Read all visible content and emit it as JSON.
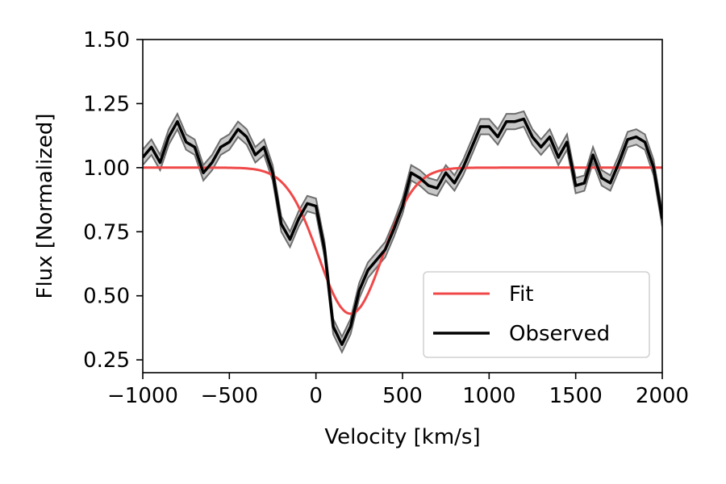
{
  "chart_data": {
    "type": "line",
    "xlabel": "Velocity [km/s]",
    "ylabel": "Flux [Normalized]",
    "xlim": [
      -1000,
      2000
    ],
    "ylim": [
      0.2,
      1.5
    ],
    "xticks": [
      -1000,
      -500,
      0,
      500,
      1000,
      1500,
      2000
    ],
    "xtick_labels": [
      "−1000",
      "−500",
      "0",
      "500",
      "1000",
      "1500",
      "2000"
    ],
    "yticks": [
      0.25,
      0.5,
      0.75,
      1.0,
      1.25,
      1.5
    ],
    "ytick_labels": [
      "0.25",
      "0.50",
      "0.75",
      "1.00",
      "1.25",
      "1.50"
    ],
    "legend_position": "lower-right",
    "colors": {
      "fit": "#f04848",
      "observed": "#000000",
      "band_fill": "#c8c8c8",
      "band_edge": "#6e6e6e"
    },
    "series": [
      {
        "name": "Fit",
        "model": "gaussian",
        "baseline": 1.0,
        "center": 200,
        "depth": 0.57,
        "sigma": 185
      },
      {
        "name": "Observed",
        "uncertainty": 0.03,
        "x": [
          -1000,
          -950,
          -900,
          -850,
          -800,
          -750,
          -700,
          -650,
          -600,
          -550,
          -500,
          -450,
          -400,
          -350,
          -300,
          -250,
          -200,
          -150,
          -100,
          -50,
          0,
          50,
          100,
          150,
          200,
          250,
          300,
          350,
          400,
          450,
          500,
          550,
          600,
          650,
          700,
          750,
          800,
          850,
          900,
          950,
          1000,
          1050,
          1100,
          1150,
          1200,
          1250,
          1300,
          1350,
          1400,
          1450,
          1500,
          1550,
          1600,
          1650,
          1700,
          1750,
          1800,
          1850,
          1900,
          1950,
          2000
        ],
        "values": [
          1.04,
          1.08,
          1.02,
          1.12,
          1.18,
          1.1,
          1.08,
          0.98,
          1.02,
          1.08,
          1.1,
          1.15,
          1.12,
          1.05,
          1.08,
          0.98,
          0.78,
          0.72,
          0.8,
          0.86,
          0.85,
          0.68,
          0.38,
          0.31,
          0.38,
          0.52,
          0.6,
          0.64,
          0.68,
          0.76,
          0.85,
          0.98,
          0.96,
          0.93,
          0.92,
          0.98,
          0.94,
          1.0,
          1.08,
          1.16,
          1.16,
          1.12,
          1.18,
          1.18,
          1.19,
          1.12,
          1.08,
          1.12,
          1.04,
          1.1,
          0.93,
          0.94,
          1.05,
          0.96,
          0.94,
          1.02,
          1.11,
          1.12,
          1.1,
          1.0,
          0.8
        ]
      }
    ]
  }
}
